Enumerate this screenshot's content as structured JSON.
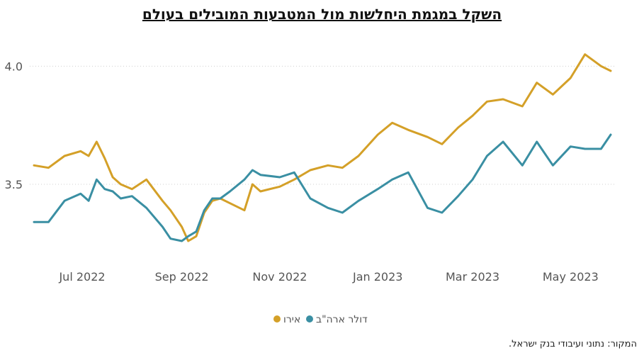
{
  "chart_data": {
    "type": "line",
    "title": "השקל במגמת היחלשות מול המטבעות המובילים בעולם",
    "source": "המקור: נתוני ועיבודי בנק ישראל.",
    "x_ticks": [
      "Jul 2022",
      "Sep 2022",
      "Nov 2022",
      "Jan 2023",
      "Mar 2023",
      "May 2023"
    ],
    "x_tick_dates": [
      "2022-07-01",
      "2022-09-01",
      "2022-11-01",
      "2023-01-01",
      "2023-03-01",
      "2023-05-01"
    ],
    "xlim": [
      "2022-06-01",
      "2023-05-26"
    ],
    "y_ticks": [
      3.5,
      4.0
    ],
    "ylim": [
      3.2,
      4.1
    ],
    "grid": "horizontal dotted",
    "legend_position": "bottom-center",
    "series": [
      {
        "name": "אירו",
        "color": "#D4A028",
        "x": [
          "2022-06-01",
          "2022-06-10",
          "2022-06-20",
          "2022-06-30",
          "2022-07-05",
          "2022-07-10",
          "2022-07-15",
          "2022-07-20",
          "2022-07-25",
          "2022-08-01",
          "2022-08-10",
          "2022-08-20",
          "2022-08-25",
          "2022-09-01",
          "2022-09-05",
          "2022-09-10",
          "2022-09-15",
          "2022-09-20",
          "2022-09-25",
          "2022-10-01",
          "2022-10-10",
          "2022-10-15",
          "2022-10-20",
          "2022-11-01",
          "2022-11-10",
          "2022-11-20",
          "2022-12-01",
          "2022-12-10",
          "2022-12-20",
          "2023-01-01",
          "2023-01-10",
          "2023-01-20",
          "2023-02-01",
          "2023-02-10",
          "2023-02-20",
          "2023-03-01",
          "2023-03-10",
          "2023-03-20",
          "2023-04-01",
          "2023-04-10",
          "2023-04-20",
          "2023-05-01",
          "2023-05-10",
          "2023-05-20",
          "2023-05-26"
        ],
        "values": [
          3.58,
          3.57,
          3.62,
          3.64,
          3.62,
          3.68,
          3.61,
          3.53,
          3.5,
          3.48,
          3.52,
          3.43,
          3.39,
          3.32,
          3.26,
          3.28,
          3.38,
          3.43,
          3.44,
          3.42,
          3.39,
          3.5,
          3.47,
          3.49,
          3.52,
          3.56,
          3.58,
          3.57,
          3.62,
          3.71,
          3.76,
          3.73,
          3.7,
          3.67,
          3.74,
          3.79,
          3.85,
          3.86,
          3.83,
          3.93,
          3.88,
          3.95,
          4.05,
          4.0,
          3.98
        ]
      },
      {
        "name": "דולר ארה\"ב",
        "color": "#3A8FA3",
        "x": [
          "2022-06-01",
          "2022-06-10",
          "2022-06-20",
          "2022-06-30",
          "2022-07-05",
          "2022-07-10",
          "2022-07-15",
          "2022-07-20",
          "2022-07-25",
          "2022-08-01",
          "2022-08-10",
          "2022-08-20",
          "2022-08-25",
          "2022-09-01",
          "2022-09-05",
          "2022-09-10",
          "2022-09-15",
          "2022-09-20",
          "2022-09-25",
          "2022-10-01",
          "2022-10-10",
          "2022-10-15",
          "2022-10-20",
          "2022-11-01",
          "2022-11-10",
          "2022-11-20",
          "2022-12-01",
          "2022-12-10",
          "2022-12-20",
          "2023-01-01",
          "2023-01-10",
          "2023-01-20",
          "2023-02-01",
          "2023-02-10",
          "2023-02-20",
          "2023-03-01",
          "2023-03-10",
          "2023-03-20",
          "2023-04-01",
          "2023-04-10",
          "2023-04-20",
          "2023-05-01",
          "2023-05-10",
          "2023-05-20",
          "2023-05-26"
        ],
        "values": [
          3.34,
          3.34,
          3.43,
          3.46,
          3.43,
          3.52,
          3.48,
          3.47,
          3.44,
          3.45,
          3.4,
          3.32,
          3.27,
          3.26,
          3.28,
          3.3,
          3.39,
          3.44,
          3.44,
          3.47,
          3.52,
          3.56,
          3.54,
          3.53,
          3.55,
          3.44,
          3.4,
          3.38,
          3.43,
          3.48,
          3.52,
          3.55,
          3.4,
          3.38,
          3.45,
          3.52,
          3.62,
          3.68,
          3.58,
          3.68,
          3.58,
          3.66,
          3.65,
          3.65,
          3.71
        ]
      }
    ]
  }
}
